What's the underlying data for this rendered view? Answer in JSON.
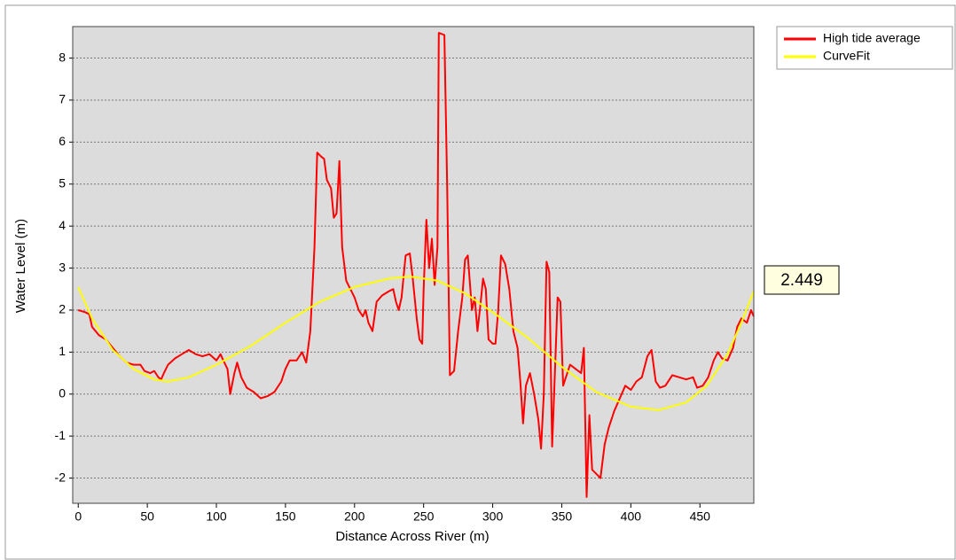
{
  "chart_data": {
    "type": "line",
    "xlabel": "Distance Across River (m)",
    "ylabel": "Water Level (m)",
    "annotation": "2.449",
    "xlim": [
      -4,
      489
    ],
    "ylim": [
      -2.6,
      8.75
    ],
    "xticks": [
      0,
      50,
      100,
      150,
      200,
      250,
      300,
      350,
      400,
      450
    ],
    "yticks": [
      -2,
      -1,
      0,
      1,
      2,
      3,
      4,
      5,
      6,
      7,
      8
    ],
    "grid": true,
    "legend": "upper right",
    "series": [
      {
        "name": "High tide average",
        "color": "#ff0000",
        "x": [
          0,
          5,
          8,
          10,
          15,
          20,
          25,
          30,
          35,
          40,
          45,
          48,
          52,
          55,
          58,
          60,
          62,
          65,
          70,
          75,
          80,
          85,
          90,
          95,
          100,
          103,
          105,
          108,
          110,
          113,
          115,
          118,
          122,
          127,
          132,
          137,
          142,
          147,
          150,
          153,
          158,
          162,
          165,
          168,
          171,
          173,
          176,
          178,
          180,
          183,
          185,
          187,
          189,
          191,
          194,
          197,
          200,
          203,
          206,
          208,
          210,
          213,
          216,
          220,
          225,
          228,
          230,
          232,
          234,
          237,
          240,
          242,
          245,
          247,
          249,
          250,
          252,
          254,
          256,
          258,
          260,
          261,
          265,
          267,
          269,
          272,
          275,
          278,
          280,
          282,
          285,
          287,
          289,
          291,
          293,
          295,
          297,
          300,
          302,
          304,
          306,
          309,
          312,
          315,
          318,
          320,
          322,
          324,
          327,
          330,
          333,
          335,
          337,
          339,
          341,
          343,
          345,
          347,
          349,
          351,
          353,
          356,
          360,
          364,
          366,
          368,
          370,
          372,
          375,
          378,
          381,
          384,
          388,
          392,
          396,
          400,
          404,
          408,
          412,
          415,
          418,
          421,
          425,
          430,
          435,
          440,
          445,
          448,
          452,
          456,
          460,
          463,
          466,
          470,
          474,
          477,
          480,
          484,
          487,
          489
        ],
        "values": [
          2.0,
          1.95,
          1.9,
          1.6,
          1.4,
          1.3,
          1.1,
          0.9,
          0.75,
          0.7,
          0.7,
          0.55,
          0.5,
          0.55,
          0.4,
          0.35,
          0.5,
          0.7,
          0.85,
          0.95,
          1.05,
          0.95,
          0.9,
          0.95,
          0.8,
          0.95,
          0.8,
          0.6,
          0.0,
          0.5,
          0.75,
          0.4,
          0.15,
          0.05,
          -0.1,
          -0.05,
          0.05,
          0.3,
          0.6,
          0.8,
          0.8,
          1.0,
          0.75,
          1.5,
          3.5,
          5.75,
          5.65,
          5.6,
          5.1,
          4.9,
          4.2,
          4.3,
          5.55,
          3.5,
          2.7,
          2.5,
          2.3,
          2.0,
          1.85,
          2.0,
          1.7,
          1.5,
          2.2,
          2.35,
          2.45,
          2.5,
          2.2,
          2.0,
          2.3,
          3.3,
          3.35,
          2.8,
          1.8,
          1.3,
          1.2,
          2.5,
          4.15,
          3.0,
          3.7,
          2.6,
          3.5,
          8.6,
          8.55,
          5.0,
          0.45,
          0.55,
          1.5,
          2.3,
          3.2,
          3.3,
          2.0,
          2.3,
          1.5,
          2.1,
          2.75,
          2.5,
          1.3,
          1.2,
          1.2,
          2.0,
          3.3,
          3.1,
          2.5,
          1.5,
          1.1,
          0.3,
          -0.7,
          0.2,
          0.5,
          0.0,
          -0.6,
          -1.3,
          0.0,
          3.15,
          2.9,
          -1.25,
          0.5,
          2.3,
          2.2,
          0.2,
          0.4,
          0.7,
          0.6,
          0.5,
          1.1,
          -2.45,
          -0.5,
          -1.8,
          -1.9,
          -2.0,
          -1.2,
          -0.8,
          -0.4,
          -0.1,
          0.2,
          0.1,
          0.3,
          0.4,
          0.9,
          1.05,
          0.3,
          0.15,
          0.2,
          0.45,
          0.4,
          0.35,
          0.4,
          0.15,
          0.2,
          0.4,
          0.8,
          1.0,
          0.85,
          0.8,
          1.1,
          1.6,
          1.8,
          1.7,
          2.0,
          1.85
        ]
      },
      {
        "name": "CurveFit",
        "color": "#ffff00",
        "x": [
          0,
          10,
          25,
          40,
          55,
          65,
          80,
          100,
          125,
          150,
          175,
          200,
          225,
          240,
          260,
          280,
          300,
          325,
          350,
          375,
          400,
          420,
          440,
          455,
          470,
          480,
          489
        ],
        "values": [
          2.55,
          1.8,
          1.05,
          0.6,
          0.35,
          0.3,
          0.4,
          0.7,
          1.15,
          1.7,
          2.2,
          2.55,
          2.75,
          2.8,
          2.7,
          2.4,
          1.95,
          1.35,
          0.65,
          0.05,
          -0.3,
          -0.38,
          -0.2,
          0.2,
          0.95,
          1.7,
          2.45
        ]
      }
    ]
  }
}
